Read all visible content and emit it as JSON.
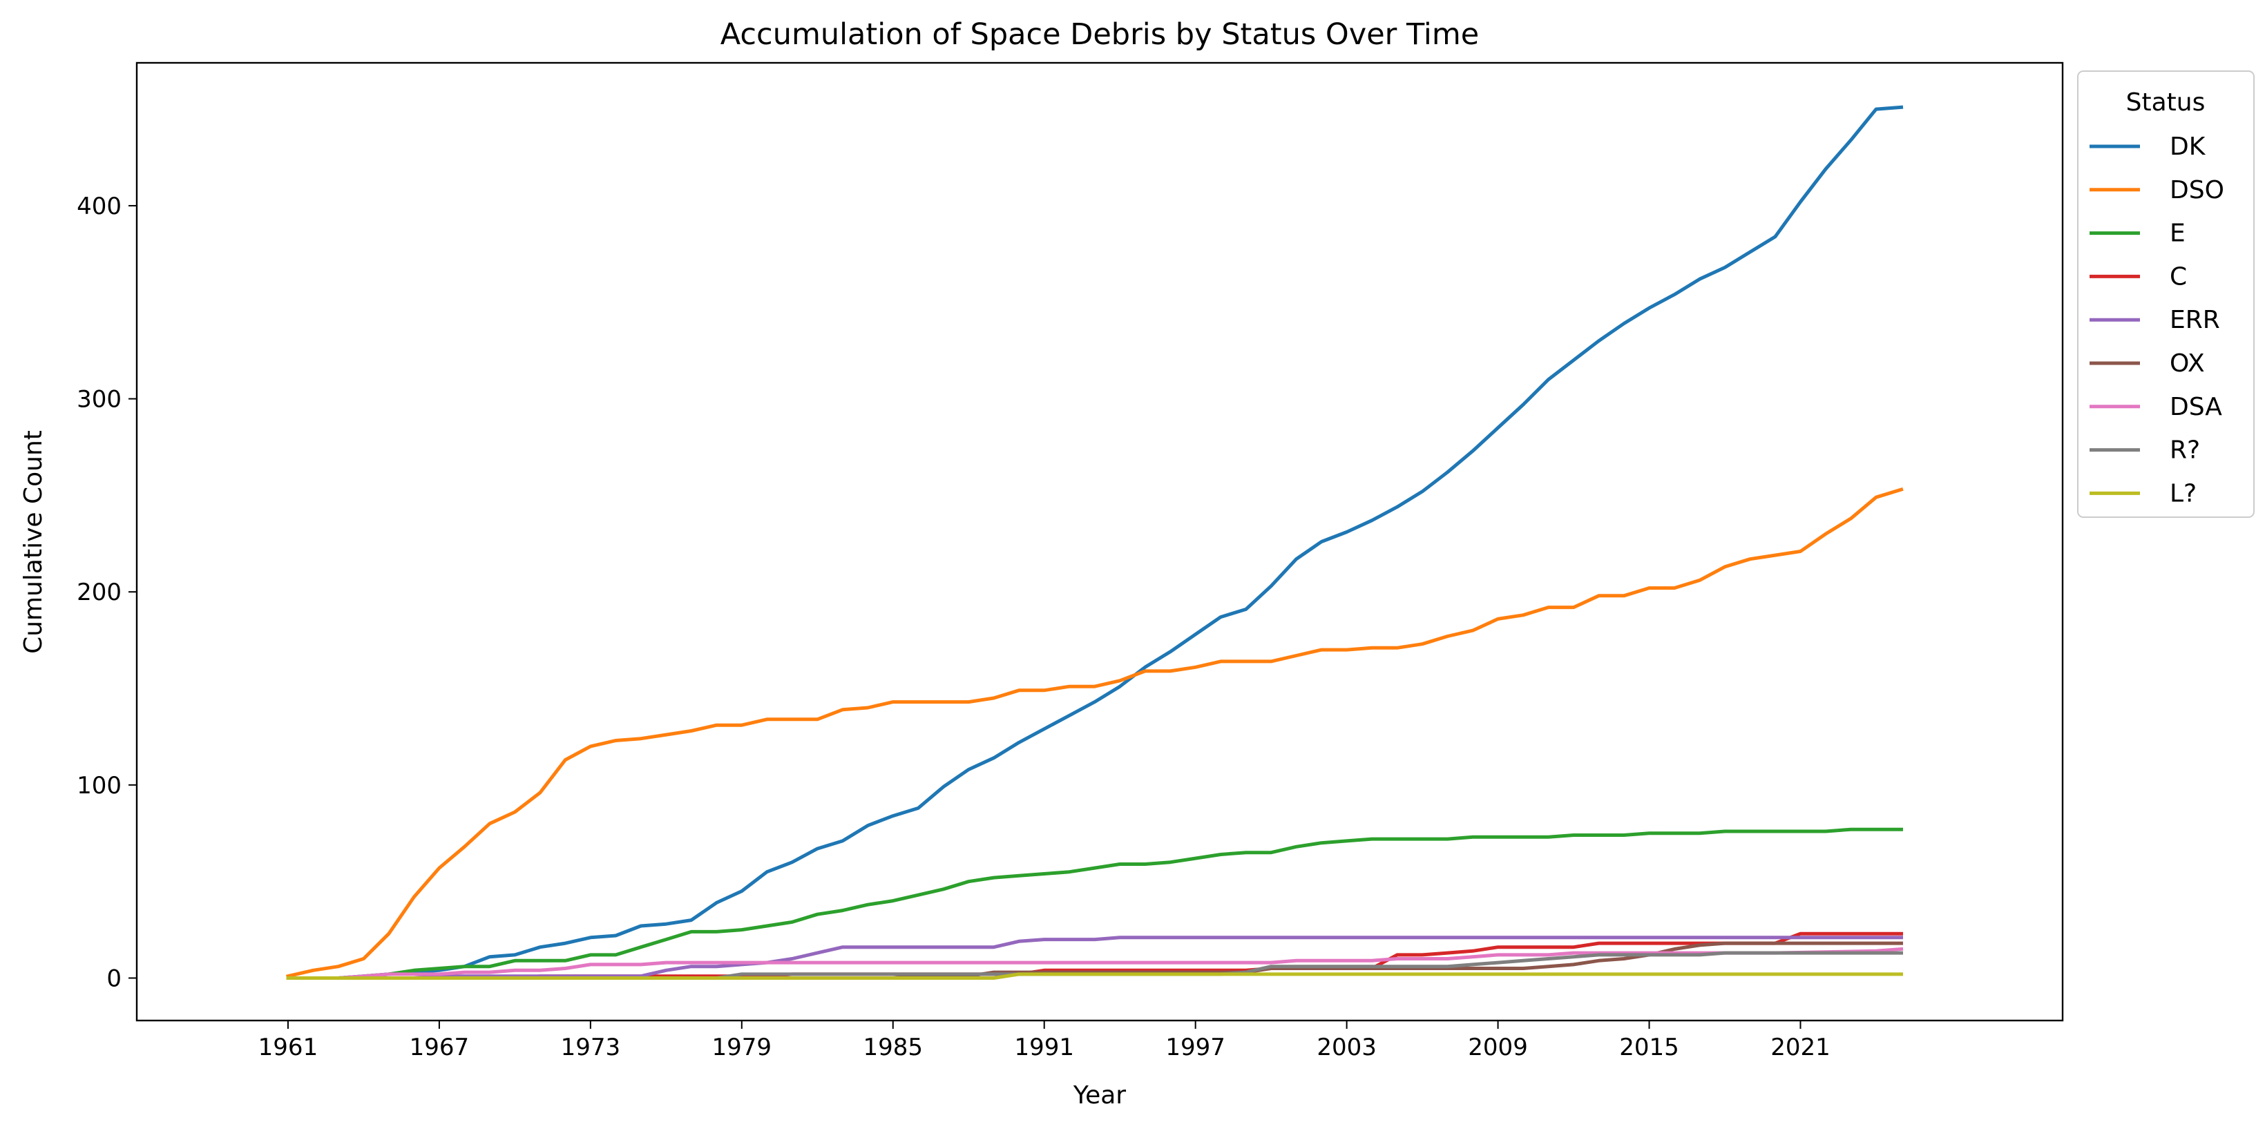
{
  "chart_data": {
    "type": "line",
    "title": "Accumulation of Space Debris by Status Over Time",
    "xlabel": "Year",
    "ylabel": "Cumulative Count",
    "xlim": [
      1955.0,
      2031.4
    ],
    "ylim": [
      -22,
      474
    ],
    "xticks": [
      1961,
      1967,
      1973,
      1979,
      1985,
      1991,
      1997,
      2003,
      2009,
      2015,
      2021
    ],
    "yticks": [
      0,
      100,
      200,
      300,
      400
    ],
    "grid": false,
    "legend": {
      "title": "Status",
      "placement": "outside-top-right"
    },
    "series": [
      {
        "name": "DK",
        "color": "#1f77b4",
        "points": [
          [
            1961,
            0
          ],
          [
            1962,
            0
          ],
          [
            1963,
            0
          ],
          [
            1964,
            1
          ],
          [
            1965,
            2
          ],
          [
            1966,
            3
          ],
          [
            1967,
            4
          ],
          [
            1968,
            6
          ],
          [
            1969,
            11
          ],
          [
            1970,
            12
          ],
          [
            1971,
            16
          ],
          [
            1972,
            18
          ],
          [
            1973,
            21
          ],
          [
            1974,
            22
          ],
          [
            1975,
            27
          ],
          [
            1976,
            28
          ],
          [
            1977,
            30
          ],
          [
            1978,
            39
          ],
          [
            1979,
            45
          ],
          [
            1980,
            55
          ],
          [
            1981,
            60
          ],
          [
            1982,
            67
          ],
          [
            1983,
            71
          ],
          [
            1984,
            79
          ],
          [
            1985,
            84
          ],
          [
            1986,
            88
          ],
          [
            1987,
            99
          ],
          [
            1988,
            108
          ],
          [
            1989,
            114
          ],
          [
            1990,
            122
          ],
          [
            1991,
            129
          ],
          [
            1992,
            136
          ],
          [
            1993,
            143
          ],
          [
            1994,
            151
          ],
          [
            1995,
            161
          ],
          [
            1996,
            169
          ],
          [
            1997,
            178
          ],
          [
            1998,
            187
          ],
          [
            1999,
            191
          ],
          [
            2000,
            203
          ],
          [
            2001,
            217
          ],
          [
            2002,
            226
          ],
          [
            2003,
            231
          ],
          [
            2004,
            237
          ],
          [
            2005,
            244
          ],
          [
            2006,
            252
          ],
          [
            2007,
            262
          ],
          [
            2008,
            273
          ],
          [
            2009,
            285
          ],
          [
            2010,
            297
          ],
          [
            2011,
            310
          ],
          [
            2012,
            320
          ],
          [
            2013,
            330
          ],
          [
            2014,
            339
          ],
          [
            2015,
            347
          ],
          [
            2016,
            354
          ],
          [
            2017,
            362
          ],
          [
            2018,
            368
          ],
          [
            2019,
            376
          ],
          [
            2020,
            384
          ],
          [
            2021,
            402
          ],
          [
            2022,
            419
          ],
          [
            2023,
            434
          ],
          [
            2024,
            450
          ],
          [
            2025,
            451
          ]
        ]
      },
      {
        "name": "DSO",
        "color": "#ff7f0e",
        "points": [
          [
            1961,
            1
          ],
          [
            1962,
            4
          ],
          [
            1963,
            6
          ],
          [
            1964,
            10
          ],
          [
            1965,
            23
          ],
          [
            1966,
            42
          ],
          [
            1967,
            57
          ],
          [
            1968,
            68
          ],
          [
            1969,
            80
          ],
          [
            1970,
            86
          ],
          [
            1971,
            96
          ],
          [
            1972,
            113
          ],
          [
            1973,
            120
          ],
          [
            1974,
            123
          ],
          [
            1975,
            124
          ],
          [
            1976,
            126
          ],
          [
            1977,
            128
          ],
          [
            1978,
            131
          ],
          [
            1979,
            131
          ],
          [
            1980,
            134
          ],
          [
            1981,
            134
          ],
          [
            1982,
            134
          ],
          [
            1983,
            139
          ],
          [
            1984,
            140
          ],
          [
            1985,
            143
          ],
          [
            1986,
            143
          ],
          [
            1987,
            143
          ],
          [
            1988,
            143
          ],
          [
            1989,
            145
          ],
          [
            1990,
            149
          ],
          [
            1991,
            149
          ],
          [
            1992,
            151
          ],
          [
            1993,
            151
          ],
          [
            1994,
            154
          ],
          [
            1995,
            159
          ],
          [
            1996,
            159
          ],
          [
            1997,
            161
          ],
          [
            1998,
            164
          ],
          [
            1999,
            164
          ],
          [
            2000,
            164
          ],
          [
            2001,
            167
          ],
          [
            2002,
            170
          ],
          [
            2003,
            170
          ],
          [
            2004,
            171
          ],
          [
            2005,
            171
          ],
          [
            2006,
            173
          ],
          [
            2007,
            177
          ],
          [
            2008,
            180
          ],
          [
            2009,
            186
          ],
          [
            2010,
            188
          ],
          [
            2011,
            192
          ],
          [
            2012,
            192
          ],
          [
            2013,
            198
          ],
          [
            2014,
            198
          ],
          [
            2015,
            202
          ],
          [
            2016,
            202
          ],
          [
            2017,
            206
          ],
          [
            2018,
            213
          ],
          [
            2019,
            217
          ],
          [
            2020,
            219
          ],
          [
            2021,
            221
          ],
          [
            2022,
            230
          ],
          [
            2023,
            238
          ],
          [
            2024,
            249
          ],
          [
            2025,
            253
          ]
        ]
      },
      {
        "name": "E",
        "color": "#2ca02c",
        "points": [
          [
            1961,
            0
          ],
          [
            1962,
            0
          ],
          [
            1963,
            0
          ],
          [
            1964,
            1
          ],
          [
            1965,
            2
          ],
          [
            1966,
            4
          ],
          [
            1967,
            5
          ],
          [
            1968,
            6
          ],
          [
            1969,
            6
          ],
          [
            1970,
            9
          ],
          [
            1971,
            9
          ],
          [
            1972,
            9
          ],
          [
            1973,
            12
          ],
          [
            1974,
            12
          ],
          [
            1975,
            16
          ],
          [
            1976,
            20
          ],
          [
            1977,
            24
          ],
          [
            1978,
            24
          ],
          [
            1979,
            25
          ],
          [
            1980,
            27
          ],
          [
            1981,
            29
          ],
          [
            1982,
            33
          ],
          [
            1983,
            35
          ],
          [
            1984,
            38
          ],
          [
            1985,
            40
          ],
          [
            1986,
            43
          ],
          [
            1987,
            46
          ],
          [
            1988,
            50
          ],
          [
            1989,
            52
          ],
          [
            1990,
            53
          ],
          [
            1991,
            54
          ],
          [
            1992,
            55
          ],
          [
            1993,
            57
          ],
          [
            1994,
            59
          ],
          [
            1995,
            59
          ],
          [
            1996,
            60
          ],
          [
            1997,
            62
          ],
          [
            1998,
            64
          ],
          [
            1999,
            65
          ],
          [
            2000,
            65
          ],
          [
            2001,
            68
          ],
          [
            2002,
            70
          ],
          [
            2003,
            71
          ],
          [
            2004,
            72
          ],
          [
            2005,
            72
          ],
          [
            2006,
            72
          ],
          [
            2007,
            72
          ],
          [
            2008,
            73
          ],
          [
            2009,
            73
          ],
          [
            2010,
            73
          ],
          [
            2011,
            73
          ],
          [
            2012,
            74
          ],
          [
            2013,
            74
          ],
          [
            2014,
            74
          ],
          [
            2015,
            75
          ],
          [
            2016,
            75
          ],
          [
            2017,
            75
          ],
          [
            2018,
            76
          ],
          [
            2019,
            76
          ],
          [
            2020,
            76
          ],
          [
            2021,
            76
          ],
          [
            2022,
            76
          ],
          [
            2023,
            77
          ],
          [
            2024,
            77
          ],
          [
            2025,
            77
          ]
        ]
      },
      {
        "name": "C",
        "color": "#d62728",
        "points": [
          [
            1961,
            0
          ],
          [
            1970,
            0
          ],
          [
            1971,
            1
          ],
          [
            1980,
            1
          ],
          [
            1981,
            2
          ],
          [
            1990,
            2
          ],
          [
            1991,
            4
          ],
          [
            1999,
            4
          ],
          [
            2000,
            5
          ],
          [
            2004,
            5
          ],
          [
            2005,
            12
          ],
          [
            2006,
            12
          ],
          [
            2007,
            13
          ],
          [
            2008,
            14
          ],
          [
            2009,
            16
          ],
          [
            2012,
            16
          ],
          [
            2013,
            18
          ],
          [
            2020,
            18
          ],
          [
            2021,
            23
          ],
          [
            2025,
            23
          ]
        ]
      },
      {
        "name": "ERR",
        "color": "#9467bd",
        "points": [
          [
            1961,
            0
          ],
          [
            1966,
            0
          ],
          [
            1967,
            1
          ],
          [
            1975,
            1
          ],
          [
            1976,
            4
          ],
          [
            1977,
            6
          ],
          [
            1978,
            6
          ],
          [
            1979,
            7
          ],
          [
            1980,
            8
          ],
          [
            1981,
            10
          ],
          [
            1982,
            13
          ],
          [
            1983,
            16
          ],
          [
            1984,
            16
          ],
          [
            1989,
            16
          ],
          [
            1990,
            19
          ],
          [
            1991,
            20
          ],
          [
            1993,
            20
          ],
          [
            1994,
            21
          ],
          [
            2025,
            21
          ]
        ]
      },
      {
        "name": "OX",
        "color": "#8c564b",
        "points": [
          [
            1961,
            0
          ],
          [
            1985,
            0
          ],
          [
            1986,
            1
          ],
          [
            1988,
            1
          ],
          [
            1989,
            3
          ],
          [
            1999,
            3
          ],
          [
            2000,
            5
          ],
          [
            2010,
            5
          ],
          [
            2011,
            6
          ],
          [
            2012,
            7
          ],
          [
            2013,
            9
          ],
          [
            2014,
            10
          ],
          [
            2015,
            12
          ],
          [
            2016,
            15
          ],
          [
            2017,
            17
          ],
          [
            2018,
            18
          ],
          [
            2025,
            18
          ]
        ]
      },
      {
        "name": "DSA",
        "color": "#e377c2",
        "points": [
          [
            1961,
            0
          ],
          [
            1962,
            0
          ],
          [
            1963,
            0
          ],
          [
            1964,
            1
          ],
          [
            1965,
            2
          ],
          [
            1967,
            2
          ],
          [
            1968,
            3
          ],
          [
            1969,
            3
          ],
          [
            1970,
            4
          ],
          [
            1971,
            4
          ],
          [
            1972,
            5
          ],
          [
            1973,
            7
          ],
          [
            1975,
            7
          ],
          [
            1976,
            8
          ],
          [
            1991,
            8
          ],
          [
            1992,
            8
          ],
          [
            2000,
            8
          ],
          [
            2001,
            9
          ],
          [
            2004,
            9
          ],
          [
            2005,
            10
          ],
          [
            2007,
            10
          ],
          [
            2008,
            11
          ],
          [
            2009,
            12
          ],
          [
            2011,
            12
          ],
          [
            2012,
            13
          ],
          [
            2020,
            13
          ],
          [
            2024,
            14
          ],
          [
            2025,
            15
          ]
        ]
      },
      {
        "name": "R?",
        "color": "#7f7f7f",
        "points": [
          [
            1961,
            0
          ],
          [
            1978,
            0
          ],
          [
            1979,
            2
          ],
          [
            1998,
            2
          ],
          [
            1999,
            3
          ],
          [
            2000,
            6
          ],
          [
            2007,
            6
          ],
          [
            2008,
            7
          ],
          [
            2009,
            8
          ],
          [
            2010,
            9
          ],
          [
            2011,
            10
          ],
          [
            2012,
            11
          ],
          [
            2013,
            12
          ],
          [
            2017,
            12
          ],
          [
            2018,
            13
          ],
          [
            2025,
            13
          ]
        ]
      },
      {
        "name": "L?",
        "color": "#bcbd22",
        "points": [
          [
            1961,
            0
          ],
          [
            1989,
            0
          ],
          [
            1990,
            2
          ],
          [
            2025,
            2
          ]
        ]
      }
    ]
  }
}
